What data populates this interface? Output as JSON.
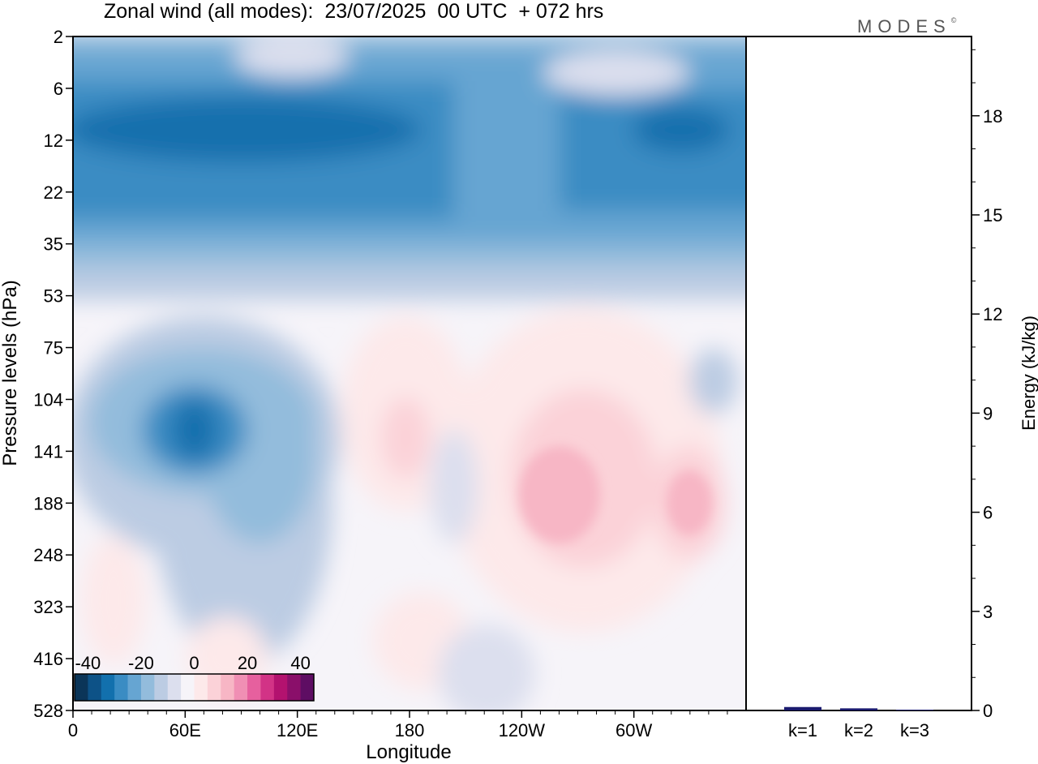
{
  "header": {
    "title": "Zonal wind (all modes):  23/07/2025  00 UTC  + 072 hrs",
    "brand": "MODES"
  },
  "chart_data": [
    {
      "type": "heatmap",
      "title": "Zonal wind (all modes):  23/07/2025  00 UTC  + 072 hrs",
      "xlabel": "Longitude",
      "ylabel": "Pressure levels (hPa)",
      "x_ticks": [
        "0",
        "60E",
        "120E",
        "180",
        "120W",
        "60W"
      ],
      "x_tick_degrees": [
        0,
        60,
        120,
        180,
        240,
        300
      ],
      "xlim_degrees": [
        0,
        360
      ],
      "y_levels_hPa": [
        "2",
        "6",
        "12",
        "22",
        "35",
        "53",
        "75",
        "104",
        "141",
        "188",
        "248",
        "323",
        "416",
        "528"
      ],
      "colorbar": {
        "ticks": [
          "-40",
          "-20",
          "0",
          "20",
          "40"
        ],
        "range": [
          -45,
          45
        ],
        "step": 5,
        "colors": [
          "#0b3558",
          "#0d5287",
          "#1270ad",
          "#3a8cc3",
          "#66a5d2",
          "#93bcdc",
          "#bccce3",
          "#dcdfee",
          "#f6f4f9",
          "#fde9ea",
          "#fbd2d8",
          "#f7b6c5",
          "#f08fb4",
          "#e6609e",
          "#d23386",
          "#b3126f",
          "#8a0f6a",
          "#5e0d63"
        ]
      },
      "features": [
        {
          "name": "upper-easterly-jet",
          "lon_range": [
            0,
            360
          ],
          "p_range_hPa": [
            6,
            35
          ],
          "u_min": -30
        },
        {
          "name": "easterly-core-east",
          "lon_deg": 320,
          "p_hPa": 12,
          "u": -30
        },
        {
          "name": "tropical-easterly-jet",
          "lon_deg": 65,
          "p_hPa": 130,
          "u": -30
        },
        {
          "name": "westerly-region-central-pacific",
          "lon_deg": 175,
          "p_hPa": 130,
          "u": 8
        },
        {
          "name": "westerly-region-east-pacific",
          "lon_deg": 245,
          "p_hPa": 160,
          "u": 10
        }
      ]
    },
    {
      "type": "bar",
      "title": "",
      "ylabel": "Energy (kJ/kg)",
      "categories": [
        "k=1",
        "k=2",
        "k=3"
      ],
      "values": [
        0.08,
        0.04,
        0.0
      ],
      "ylim": [
        0,
        20.4
      ],
      "y_ticks": [
        "0",
        "3",
        "6",
        "9",
        "12",
        "15",
        "18"
      ],
      "y_tick_values": [
        0,
        3,
        6,
        9,
        12,
        15,
        18
      ]
    }
  ]
}
